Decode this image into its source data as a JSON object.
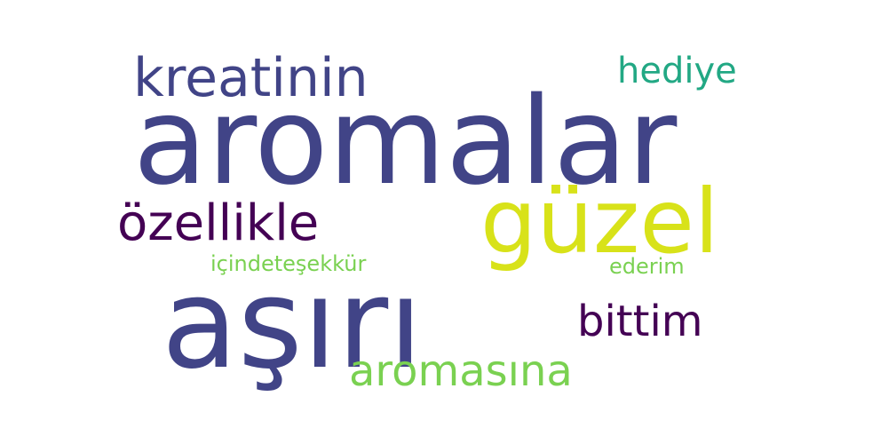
{
  "words": {
    "aromalar": {
      "text": "aromalar",
      "color": "#414487"
    },
    "asiri": {
      "text": "aşırı",
      "color": "#414487"
    },
    "guzel": {
      "text": "güzel",
      "color": "#d8e219"
    },
    "kreatinin": {
      "text": "kreatinin",
      "color": "#414487"
    },
    "ozellikle": {
      "text": "özellikle",
      "color": "#440154"
    },
    "bittim": {
      "text": "bittim",
      "color": "#440154"
    },
    "aromasina": {
      "text": "aromasına",
      "color": "#7ad151"
    },
    "hediye": {
      "text": "hediye",
      "color": "#22a884"
    },
    "icinde": {
      "text": "içindeteşekkür",
      "color": "#7ad151"
    },
    "ederim": {
      "text": "ederim",
      "color": "#7ad151"
    }
  }
}
